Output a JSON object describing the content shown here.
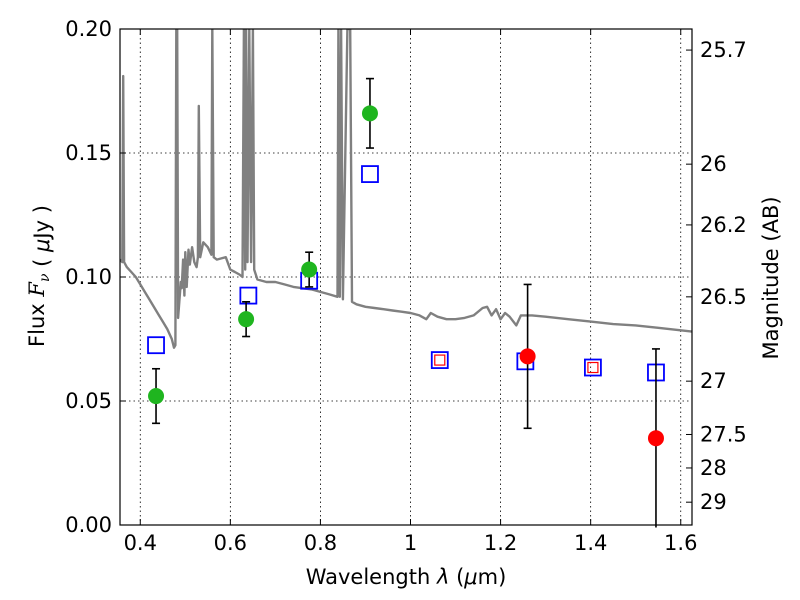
{
  "chart_data": {
    "type": "scatter",
    "xlabel": "Wavelength  λ (μm)",
    "ylabel": "Flux  F_ν  ( μJy )",
    "ylabel_right": "Magnitude (AB)",
    "xlim": [
      0.355,
      1.625
    ],
    "ylim": [
      0.0,
      0.2
    ],
    "grid": true,
    "x_ticks": [
      0.4,
      0.6,
      0.8,
      1.0,
      1.2,
      1.4,
      1.6
    ],
    "x_tick_labels": [
      "0.4",
      "0.6",
      "0.8",
      "1",
      "1.2",
      "1.4",
      "1.6"
    ],
    "y_ticks": [
      0.0,
      0.05,
      0.1,
      0.15,
      0.2
    ],
    "y_tick_labels": [
      "0.00",
      "0.05",
      "0.10",
      "0.15",
      "0.20"
    ],
    "right_ticks": [
      {
        "label": "25.7",
        "flux": 0.1915
      },
      {
        "label": "26",
        "flux": 0.1455
      },
      {
        "label": "26.2",
        "flux": 0.121
      },
      {
        "label": "26.5",
        "flux": 0.092
      },
      {
        "label": "27",
        "flux": 0.058
      },
      {
        "label": "27.5",
        "flux": 0.0365
      },
      {
        "label": "28",
        "flux": 0.023
      },
      {
        "label": "29",
        "flux": 0.0092
      }
    ],
    "series": [
      {
        "kind": "green-measurements",
        "color": "#1fb51f",
        "marker": "circle",
        "points": [
          {
            "x": 0.435,
            "y": 0.052,
            "err": 0.011
          },
          {
            "x": 0.635,
            "y": 0.083,
            "err": 0.007
          },
          {
            "x": 0.775,
            "y": 0.103,
            "err": 0.007
          },
          {
            "x": 0.91,
            "y": 0.166,
            "err": 0.014
          }
        ]
      },
      {
        "kind": "red-measurements",
        "color": "#ff0000",
        "marker": "circle",
        "points": [
          {
            "x": 1.26,
            "y": 0.068,
            "err": 0.029
          },
          {
            "x": 1.545,
            "y": 0.035,
            "err": 0.036
          }
        ]
      },
      {
        "kind": "blue-model-squares",
        "color": "#0000ff",
        "marker": "square-open",
        "points": [
          {
            "x": 0.435,
            "y": 0.0725
          },
          {
            "x": 0.64,
            "y": 0.0925
          },
          {
            "x": 0.775,
            "y": 0.0985
          },
          {
            "x": 0.91,
            "y": 0.1415
          },
          {
            "x": 1.065,
            "y": 0.0665
          },
          {
            "x": 1.255,
            "y": 0.066
          },
          {
            "x": 1.405,
            "y": 0.0635
          },
          {
            "x": 1.545,
            "y": 0.0615
          }
        ]
      },
      {
        "kind": "red-model-squares",
        "color": "#ff0000",
        "marker": "square-open-small",
        "points": [
          {
            "x": 1.065,
            "y": 0.0665
          },
          {
            "x": 1.405,
            "y": 0.0635
          }
        ]
      },
      {
        "kind": "sed-spectrum",
        "color": "#808080",
        "marker": "line",
        "points": [
          [
            0.355,
            0.107
          ],
          [
            0.36,
            0.106
          ],
          [
            0.362,
            0.181
          ],
          [
            0.364,
            0.106
          ],
          [
            0.37,
            0.104
          ],
          [
            0.38,
            0.102
          ],
          [
            0.39,
            0.1
          ],
          [
            0.4,
            0.097
          ],
          [
            0.41,
            0.094
          ],
          [
            0.42,
            0.091
          ],
          [
            0.43,
            0.088
          ],
          [
            0.44,
            0.085
          ],
          [
            0.45,
            0.082
          ],
          [
            0.46,
            0.079
          ],
          [
            0.47,
            0.075
          ],
          [
            0.475,
            0.0715
          ],
          [
            0.478,
            0.0725
          ],
          [
            0.48,
            0.2
          ],
          [
            0.482,
            0.2
          ],
          [
            0.484,
            0.0835
          ],
          [
            0.49,
            0.098
          ],
          [
            0.492,
            0.0955
          ],
          [
            0.495,
            0.107
          ],
          [
            0.498,
            0.0925
          ],
          [
            0.5,
            0.11
          ],
          [
            0.503,
            0.096
          ],
          [
            0.507,
            0.111
          ],
          [
            0.51,
            0.105
          ],
          [
            0.515,
            0.112
          ],
          [
            0.52,
            0.106
          ],
          [
            0.525,
            0.104
          ],
          [
            0.528,
            0.108
          ],
          [
            0.53,
            0.169
          ],
          [
            0.533,
            0.108
          ],
          [
            0.54,
            0.114
          ],
          [
            0.55,
            0.112
          ],
          [
            0.558,
            0.109
          ],
          [
            0.56,
            0.201
          ],
          [
            0.563,
            0.108
          ],
          [
            0.57,
            0.107
          ],
          [
            0.58,
            0.1075
          ],
          [
            0.59,
            0.108
          ],
          [
            0.6,
            0.103
          ],
          [
            0.61,
            0.102
          ],
          [
            0.62,
            0.101
          ],
          [
            0.627,
            0.1
          ],
          [
            0.63,
            0.2
          ],
          [
            0.633,
            0.103
          ],
          [
            0.635,
            0.2
          ],
          [
            0.638,
            0.106
          ],
          [
            0.642,
            0.2
          ],
          [
            0.646,
            0.106
          ],
          [
            0.65,
            0.2
          ],
          [
            0.653,
            0.103
          ],
          [
            0.66,
            0.099
          ],
          [
            0.68,
            0.098
          ],
          [
            0.7,
            0.098
          ],
          [
            0.72,
            0.097
          ],
          [
            0.74,
            0.096
          ],
          [
            0.76,
            0.0955
          ],
          [
            0.78,
            0.095
          ],
          [
            0.8,
            0.094
          ],
          [
            0.82,
            0.093
          ],
          [
            0.838,
            0.092
          ],
          [
            0.84,
            0.2
          ],
          [
            0.843,
            0.092
          ],
          [
            0.846,
            0.2
          ],
          [
            0.85,
            0.091
          ],
          [
            0.86,
            0.2
          ],
          [
            0.866,
            0.2
          ],
          [
            0.87,
            0.09
          ],
          [
            0.88,
            0.089
          ],
          [
            0.9,
            0.088
          ],
          [
            0.92,
            0.0875
          ],
          [
            0.94,
            0.087
          ],
          [
            0.96,
            0.0865
          ],
          [
            0.98,
            0.086
          ],
          [
            1.0,
            0.0855
          ],
          [
            1.02,
            0.0845
          ],
          [
            1.035,
            0.083
          ],
          [
            1.045,
            0.0855
          ],
          [
            1.06,
            0.084
          ],
          [
            1.08,
            0.083
          ],
          [
            1.1,
            0.083
          ],
          [
            1.12,
            0.0835
          ],
          [
            1.14,
            0.0845
          ],
          [
            1.16,
            0.0875
          ],
          [
            1.17,
            0.088
          ],
          [
            1.18,
            0.0845
          ],
          [
            1.19,
            0.087
          ],
          [
            1.2,
            0.083
          ],
          [
            1.21,
            0.0855
          ],
          [
            1.22,
            0.084
          ],
          [
            1.235,
            0.0805
          ],
          [
            1.245,
            0.0845
          ],
          [
            1.27,
            0.0845
          ],
          [
            1.3,
            0.084
          ],
          [
            1.35,
            0.083
          ],
          [
            1.4,
            0.082
          ],
          [
            1.45,
            0.081
          ],
          [
            1.5,
            0.0805
          ],
          [
            1.55,
            0.0795
          ],
          [
            1.6,
            0.0785
          ],
          [
            1.625,
            0.078
          ]
        ]
      }
    ]
  }
}
